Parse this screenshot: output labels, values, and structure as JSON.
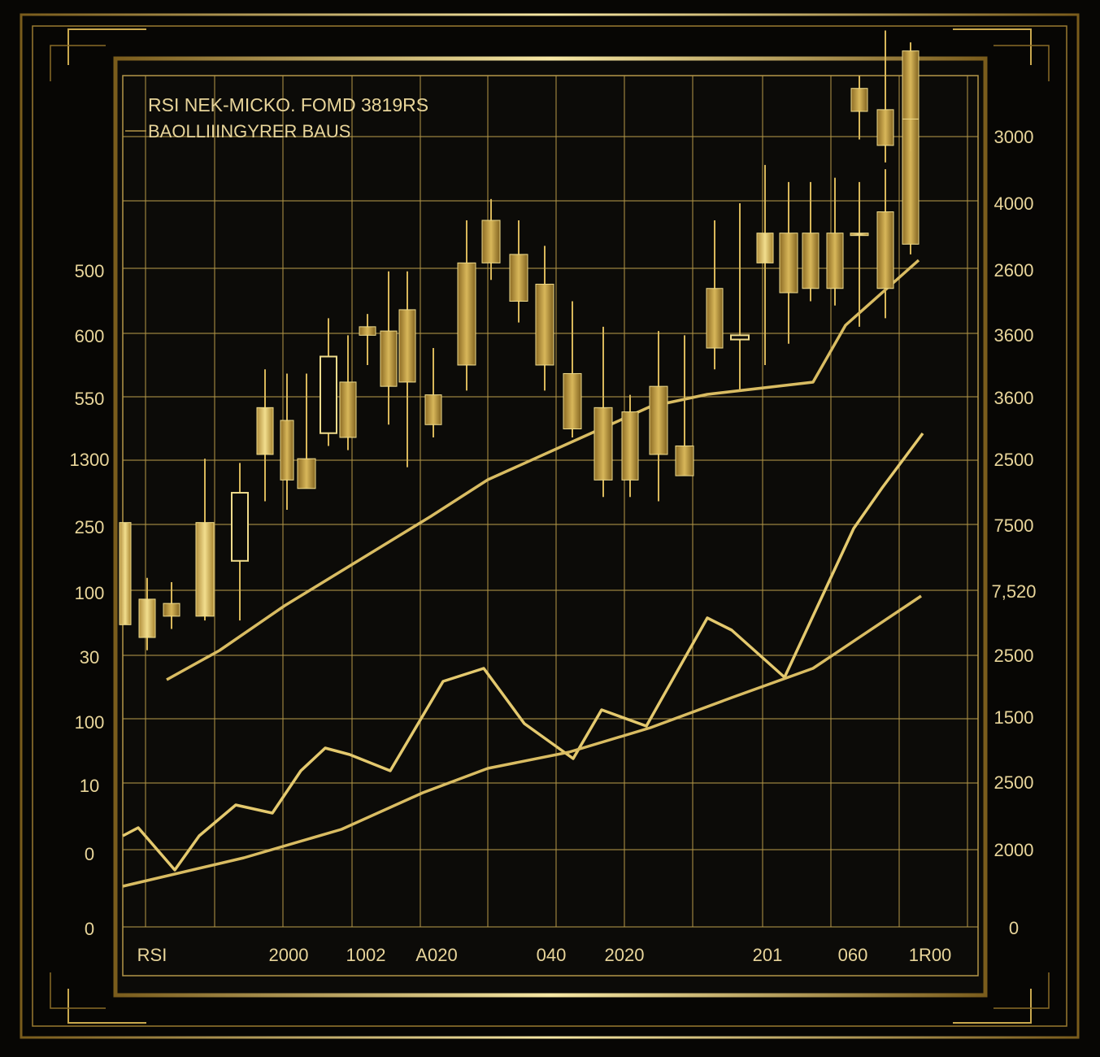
{
  "colors": {
    "background": "#070604",
    "panel": "#0c0b08",
    "gold": "#d8b75a",
    "gold_light": "#f0dc8c",
    "gold_dark": "#8a6c26",
    "grid": "#b39648",
    "text": "#e8d59a"
  },
  "chart_data": {
    "type": "candlestick",
    "title": "RSI NEK-MICKO. FOMD 3819RS",
    "subtitle": "BAOLLIIINGYRER BAUS",
    "x_labels": [
      "RSI",
      "2000",
      "1002",
      "A020",
      "040",
      "2020",
      "201",
      "060",
      "1R00"
    ],
    "left_axis_labels": [
      "500",
      "600",
      "550",
      "1300",
      "250",
      "100",
      "30",
      "100",
      "10",
      "0",
      "0"
    ],
    "right_axis_labels": [
      "3000",
      "4000",
      "2600",
      "3600",
      "3600",
      "2500",
      "7500",
      "7,520",
      "2500",
      "1500",
      "2500",
      "2000",
      "0"
    ],
    "y_range": [
      0,
      10
    ],
    "grid": true,
    "candles": [
      {
        "open": 3.55,
        "close": 4.75,
        "high": 4.75,
        "low": 3.55
      },
      {
        "open": 3.4,
        "close": 3.85,
        "high": 4.1,
        "low": 3.25
      },
      {
        "open": 3.8,
        "close": 3.65,
        "high": 4.05,
        "low": 3.5
      },
      {
        "open": 3.65,
        "close": 4.75,
        "high": 5.5,
        "low": 3.6
      },
      {
        "open": 4.3,
        "close": 5.1,
        "high": 5.45,
        "low": 3.6
      },
      {
        "open": 5.55,
        "close": 6.1,
        "high": 6.55,
        "low": 5.0
      },
      {
        "open": 5.95,
        "close": 5.25,
        "high": 6.5,
        "low": 4.9
      },
      {
        "open": 5.5,
        "close": 5.15,
        "high": 6.5,
        "low": 5.15
      },
      {
        "open": 5.8,
        "close": 6.7,
        "high": 7.15,
        "low": 5.65
      },
      {
        "open": 6.4,
        "close": 5.75,
        "high": 6.95,
        "low": 5.6
      },
      {
        "open": 7.05,
        "close": 6.95,
        "high": 7.2,
        "low": 6.6
      },
      {
        "open": 7.0,
        "close": 6.35,
        "high": 7.7,
        "low": 5.9
      },
      {
        "open": 7.25,
        "close": 6.4,
        "high": 7.7,
        "low": 5.4
      },
      {
        "open": 6.25,
        "close": 5.9,
        "high": 6.8,
        "low": 5.75
      },
      {
        "open": 7.8,
        "close": 6.6,
        "high": 8.3,
        "low": 6.3
      },
      {
        "open": 8.3,
        "close": 7.8,
        "high": 8.55,
        "low": 7.6
      },
      {
        "open": 7.9,
        "close": 7.35,
        "high": 8.3,
        "low": 7.1
      },
      {
        "open": 7.55,
        "close": 6.6,
        "high": 8.0,
        "low": 6.3
      },
      {
        "open": 6.5,
        "close": 5.85,
        "high": 7.35,
        "low": 5.75
      },
      {
        "open": 6.1,
        "close": 5.25,
        "high": 7.05,
        "low": 5.05
      },
      {
        "open": 6.05,
        "close": 5.25,
        "high": 6.25,
        "low": 5.05
      },
      {
        "open": 6.35,
        "close": 5.55,
        "high": 7.0,
        "low": 5.0
      },
      {
        "open": 5.65,
        "close": 5.3,
        "high": 6.95,
        "low": 5.3
      },
      {
        "open": 7.5,
        "close": 6.8,
        "high": 8.3,
        "low": 6.55
      },
      {
        "open": 6.9,
        "close": 6.95,
        "high": 8.5,
        "low": 6.3
      },
      {
        "open": 7.8,
        "close": 8.15,
        "high": 8.95,
        "low": 6.6
      },
      {
        "open": 8.15,
        "close": 7.45,
        "high": 8.75,
        "low": 6.85
      },
      {
        "open": 8.15,
        "close": 7.5,
        "high": 8.75,
        "low": 7.35
      },
      {
        "open": 8.15,
        "close": 7.5,
        "high": 8.8,
        "low": 7.3
      },
      {
        "open": 8.15,
        "close": 8.15,
        "high": 8.75,
        "low": 7.05
      },
      {
        "open": 8.4,
        "close": 7.5,
        "high": 8.9,
        "low": 7.15
      },
      {
        "open": 9.8,
        "close": 8.02,
        "high": 9.8,
        "low": 7.9
      },
      {
        "open": 9.85,
        "close": 9.58,
        "high": 10.0,
        "low": 9.25
      },
      {
        "open": 9.6,
        "close": 9.18,
        "high": 10.53,
        "low": 8.98
      },
      {
        "open": 10.29,
        "close": 9.49,
        "high": 10.39,
        "low": 9.11
      }
    ],
    "series": [
      {
        "values": [
          3.75,
          4.3,
          5.1,
          5.8,
          6.55,
          7.15,
          7.9,
          8.4,
          8.2,
          9.6
        ]
      },
      {
        "values": [
          2.25,
          2.4,
          3.4,
          3.9,
          4.8,
          5.6,
          6.2,
          4.45,
          7.7,
          8.4
        ]
      },
      {
        "values": [
          1.0,
          1.2,
          1.55,
          1.95,
          2.45,
          2.9,
          3.1,
          3.6,
          4.1,
          5.1
        ]
      }
    ]
  }
}
